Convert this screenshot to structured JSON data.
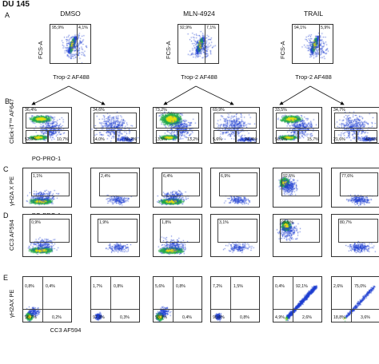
{
  "figure": {
    "title": "DU 145",
    "row_letters": [
      "A",
      "B",
      "C",
      "D",
      "E"
    ],
    "conditions": [
      "DMSO",
      "MLN-4924",
      "TRAIL"
    ]
  },
  "row_a": {
    "ylabel": "FCS-A",
    "xlabel": "Trop-2 AF488",
    "panels": [
      {
        "condition": "DMSO",
        "left_pct": "95,9%",
        "right_pct": "4,1%"
      },
      {
        "condition": "MLN-4924",
        "left_pct": "92,9%",
        "right_pct": "7,1%"
      },
      {
        "condition": "TRAIL",
        "left_pct": "94,1%",
        "right_pct": "5,9%"
      }
    ]
  },
  "row_b": {
    "ylabel": "Click-iT™ AF647",
    "xlabel": "PO-PRO-1",
    "panels": [
      {
        "top": "36,4%",
        "bl": "52,6%",
        "br": "10,7%"
      },
      {
        "top": "34,6%",
        "bl": "14,0%",
        "br": "50,2%"
      },
      {
        "top": "73,2%",
        "bl": "13,5%",
        "br": "13,2%"
      },
      {
        "top": "69,9%",
        "bl": "5,6%",
        "br": "24,4%"
      },
      {
        "top": "33,5%",
        "bl": "50,6%",
        "br": "15,7%"
      },
      {
        "top": "34,7%",
        "bl": "21,6%",
        "br": "42,5%"
      }
    ]
  },
  "row_c": {
    "ylabel": "γH2A X PE",
    "xlabel": "PO-PRO-1",
    "panels": [
      {
        "gate": "1,1%"
      },
      {
        "gate": "2,4%"
      },
      {
        "gate": "6,4%"
      },
      {
        "gate": "6,9%"
      },
      {
        "gate": "92,5%"
      },
      {
        "gate": "77,6%"
      }
    ]
  },
  "row_d": {
    "ylabel": "CC3 AF594",
    "xlabel": "PO-PRO-1",
    "panels": [
      {
        "gate": "0,9%"
      },
      {
        "gate": "1,9%"
      },
      {
        "gate": "1,8%"
      },
      {
        "gate": "3,1%"
      },
      {
        "gate": "95,5%"
      },
      {
        "gate": "80,7%"
      }
    ]
  },
  "row_e": {
    "ylabel": "γH2AX PE",
    "xlabel": "CC3 AF594",
    "panels": [
      {
        "tl": "0,8%",
        "tr": "0,4%",
        "bl": "98,7%",
        "br": "0,2%"
      },
      {
        "tl": "1,7%",
        "tr": "0,8%",
        "bl": "97,3%",
        "br": "0,3%"
      },
      {
        "tl": "5,6%",
        "tr": "0,8%",
        "bl": "93,3%",
        "br": "0,4%"
      },
      {
        "tl": "7,2%",
        "tr": "1,5%",
        "bl": "90,6%",
        "br": "0,8%"
      },
      {
        "tl": "0,4%",
        "tr": "92,1%",
        "bl": "4,9%",
        "br": "2,6%"
      },
      {
        "tl": "2,6%",
        "tr": "75,0%",
        "bl": "18,8%",
        "br": "3,6%"
      }
    ]
  },
  "colors": {
    "density_high": "#e8e010",
    "density_mid": "#22a84a",
    "density_low": "#1f3fd0",
    "gate": "#444444"
  }
}
